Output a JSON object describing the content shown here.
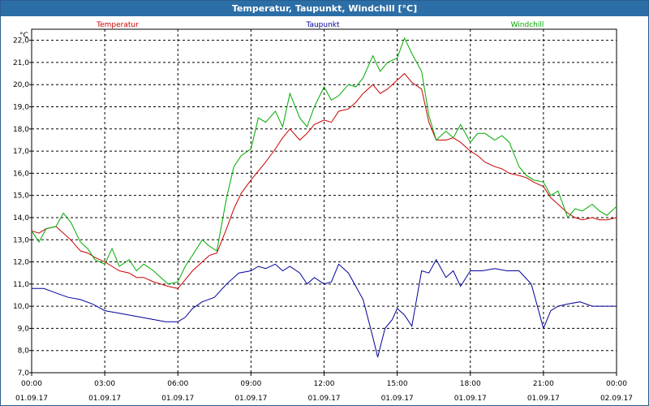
{
  "window": {
    "title": "Temperatur, Taupunkt, Windchill [°C]"
  },
  "chart_data": {
    "type": "line",
    "unit_label": "°C",
    "ylim": [
      7.0,
      22.5
    ],
    "y_ticks": [
      "7,0",
      "8,0",
      "9,0",
      "10,0",
      "11,0",
      "12,0",
      "13,0",
      "14,0",
      "15,0",
      "16,0",
      "17,0",
      "18,0",
      "19,0",
      "20,0",
      "21,0",
      "22,0"
    ],
    "x_ticks": [
      {
        "time": "00:00",
        "date": "01.09.17"
      },
      {
        "time": "03:00",
        "date": "01.09.17"
      },
      {
        "time": "06:00",
        "date": "01.09.17"
      },
      {
        "time": "09:00",
        "date": "01.09.17"
      },
      {
        "time": "12:00",
        "date": "01.09.17"
      },
      {
        "time": "15:00",
        "date": "01.09.17"
      },
      {
        "time": "18:00",
        "date": "01.09.17"
      },
      {
        "time": "21:00",
        "date": "01.09.17"
      },
      {
        "time": "00:00",
        "date": "02.09.17"
      }
    ],
    "xlim_hours": [
      0,
      24
    ],
    "grid": true,
    "series": [
      {
        "name": "Temperatur",
        "color": "#cc0000",
        "points": [
          [
            0,
            13.4
          ],
          [
            0.3,
            13.3
          ],
          [
            0.6,
            13.5
          ],
          [
            1,
            13.6
          ],
          [
            1.3,
            13.3
          ],
          [
            1.6,
            13.0
          ],
          [
            2,
            12.5
          ],
          [
            2.3,
            12.4
          ],
          [
            2.6,
            12.2
          ],
          [
            3,
            12.0
          ],
          [
            3.3,
            11.8
          ],
          [
            3.6,
            11.6
          ],
          [
            4,
            11.5
          ],
          [
            4.3,
            11.3
          ],
          [
            4.6,
            11.3
          ],
          [
            5,
            11.1
          ],
          [
            5.3,
            11.0
          ],
          [
            5.6,
            10.9
          ],
          [
            6,
            10.8
          ],
          [
            6.3,
            11.2
          ],
          [
            6.6,
            11.6
          ],
          [
            7,
            12.0
          ],
          [
            7.3,
            12.3
          ],
          [
            7.6,
            12.4
          ],
          [
            8,
            13.5
          ],
          [
            8.3,
            14.4
          ],
          [
            8.6,
            15.1
          ],
          [
            9,
            15.7
          ],
          [
            9.3,
            16.1
          ],
          [
            9.6,
            16.5
          ],
          [
            10,
            17.1
          ],
          [
            10.3,
            17.6
          ],
          [
            10.6,
            18.0
          ],
          [
            11,
            17.5
          ],
          [
            11.3,
            17.8
          ],
          [
            11.6,
            18.2
          ],
          [
            12,
            18.4
          ],
          [
            12.3,
            18.3
          ],
          [
            12.6,
            18.8
          ],
          [
            13,
            18.9
          ],
          [
            13.3,
            19.2
          ],
          [
            13.6,
            19.6
          ],
          [
            14,
            20.0
          ],
          [
            14.3,
            19.6
          ],
          [
            14.6,
            19.8
          ],
          [
            15,
            20.2
          ],
          [
            15.3,
            20.5
          ],
          [
            15.6,
            20.1
          ],
          [
            16,
            19.8
          ],
          [
            16.3,
            18.3
          ],
          [
            16.6,
            17.5
          ],
          [
            17,
            17.5
          ],
          [
            17.3,
            17.6
          ],
          [
            17.6,
            17.4
          ],
          [
            18,
            17.0
          ],
          [
            18.3,
            16.8
          ],
          [
            18.6,
            16.5
          ],
          [
            19,
            16.3
          ],
          [
            19.3,
            16.2
          ],
          [
            19.6,
            16.0
          ],
          [
            20,
            15.9
          ],
          [
            20.3,
            15.8
          ],
          [
            20.6,
            15.6
          ],
          [
            21,
            15.4
          ],
          [
            21.3,
            14.9
          ],
          [
            21.6,
            14.6
          ],
          [
            22,
            14.2
          ],
          [
            22.3,
            14.0
          ],
          [
            22.6,
            13.9
          ],
          [
            23,
            14.0
          ],
          [
            23.3,
            13.9
          ],
          [
            23.6,
            13.9
          ],
          [
            24,
            14.0
          ]
        ]
      },
      {
        "name": "Taupunkt",
        "color": "#000099",
        "points": [
          [
            0,
            10.8
          ],
          [
            0.5,
            10.8
          ],
          [
            1,
            10.6
          ],
          [
            1.5,
            10.4
          ],
          [
            2,
            10.3
          ],
          [
            2.5,
            10.1
          ],
          [
            3,
            9.8
          ],
          [
            3.5,
            9.7
          ],
          [
            4,
            9.6
          ],
          [
            4.5,
            9.5
          ],
          [
            5,
            9.4
          ],
          [
            5.5,
            9.3
          ],
          [
            6,
            9.3
          ],
          [
            6.3,
            9.5
          ],
          [
            6.6,
            9.9
          ],
          [
            7,
            10.2
          ],
          [
            7.5,
            10.4
          ],
          [
            8,
            11.0
          ],
          [
            8.5,
            11.5
          ],
          [
            9,
            11.6
          ],
          [
            9.3,
            11.8
          ],
          [
            9.6,
            11.7
          ],
          [
            10,
            11.9
          ],
          [
            10.3,
            11.6
          ],
          [
            10.6,
            11.8
          ],
          [
            11,
            11.5
          ],
          [
            11.3,
            11.0
          ],
          [
            11.6,
            11.3
          ],
          [
            12,
            11.0
          ],
          [
            12.3,
            11.1
          ],
          [
            12.6,
            11.9
          ],
          [
            13,
            11.5
          ],
          [
            13.3,
            10.9
          ],
          [
            13.6,
            10.3
          ],
          [
            14,
            8.6
          ],
          [
            14.2,
            7.7
          ],
          [
            14.5,
            9.0
          ],
          [
            14.8,
            9.4
          ],
          [
            15,
            9.9
          ],
          [
            15.3,
            9.6
          ],
          [
            15.6,
            9.1
          ],
          [
            16,
            11.6
          ],
          [
            16.3,
            11.5
          ],
          [
            16.6,
            12.1
          ],
          [
            17,
            11.3
          ],
          [
            17.3,
            11.6
          ],
          [
            17.6,
            10.9
          ],
          [
            18,
            11.6
          ],
          [
            18.5,
            11.6
          ],
          [
            19,
            11.7
          ],
          [
            19.5,
            11.6
          ],
          [
            20,
            11.6
          ],
          [
            20.5,
            11.0
          ],
          [
            21,
            9.0
          ],
          [
            21.3,
            9.8
          ],
          [
            21.6,
            10.0
          ],
          [
            22,
            10.1
          ],
          [
            22.5,
            10.2
          ],
          [
            23,
            10.0
          ],
          [
            23.5,
            10.0
          ],
          [
            24,
            10.0
          ]
        ]
      },
      {
        "name": "Windchill",
        "color": "#00aa00",
        "points": [
          [
            0,
            13.4
          ],
          [
            0.3,
            12.9
          ],
          [
            0.6,
            13.5
          ],
          [
            1,
            13.6
          ],
          [
            1.3,
            14.2
          ],
          [
            1.6,
            13.8
          ],
          [
            2,
            12.9
          ],
          [
            2.3,
            12.6
          ],
          [
            2.6,
            12.1
          ],
          [
            3,
            11.9
          ],
          [
            3.3,
            12.6
          ],
          [
            3.6,
            11.8
          ],
          [
            4,
            12.1
          ],
          [
            4.3,
            11.6
          ],
          [
            4.6,
            11.9
          ],
          [
            5,
            11.6
          ],
          [
            5.3,
            11.3
          ],
          [
            5.6,
            11.0
          ],
          [
            6,
            11.1
          ],
          [
            6.3,
            11.8
          ],
          [
            6.6,
            12.3
          ],
          [
            7,
            13.0
          ],
          [
            7.3,
            12.7
          ],
          [
            7.6,
            12.5
          ],
          [
            8,
            14.9
          ],
          [
            8.3,
            16.3
          ],
          [
            8.6,
            16.8
          ],
          [
            9,
            17.1
          ],
          [
            9.3,
            18.5
          ],
          [
            9.6,
            18.3
          ],
          [
            10,
            18.8
          ],
          [
            10.3,
            18.1
          ],
          [
            10.6,
            19.6
          ],
          [
            11,
            18.5
          ],
          [
            11.3,
            18.1
          ],
          [
            11.6,
            19.0
          ],
          [
            12,
            19.9
          ],
          [
            12.3,
            19.3
          ],
          [
            12.6,
            19.5
          ],
          [
            13,
            20.0
          ],
          [
            13.3,
            19.9
          ],
          [
            13.6,
            20.3
          ],
          [
            14,
            21.3
          ],
          [
            14.3,
            20.6
          ],
          [
            14.6,
            21.0
          ],
          [
            15,
            21.2
          ],
          [
            15.3,
            22.1
          ],
          [
            15.6,
            21.4
          ],
          [
            16,
            20.6
          ],
          [
            16.3,
            18.6
          ],
          [
            16.6,
            17.5
          ],
          [
            17,
            17.9
          ],
          [
            17.3,
            17.6
          ],
          [
            17.6,
            18.2
          ],
          [
            18,
            17.4
          ],
          [
            18.3,
            17.8
          ],
          [
            18.6,
            17.8
          ],
          [
            19,
            17.5
          ],
          [
            19.3,
            17.7
          ],
          [
            19.6,
            17.4
          ],
          [
            20,
            16.3
          ],
          [
            20.3,
            15.9
          ],
          [
            20.6,
            15.7
          ],
          [
            21,
            15.6
          ],
          [
            21.3,
            15.0
          ],
          [
            21.6,
            15.2
          ],
          [
            22,
            14.0
          ],
          [
            22.3,
            14.4
          ],
          [
            22.6,
            14.3
          ],
          [
            23,
            14.6
          ],
          [
            23.3,
            14.3
          ],
          [
            23.6,
            14.1
          ],
          [
            24,
            14.5
          ]
        ]
      }
    ]
  }
}
